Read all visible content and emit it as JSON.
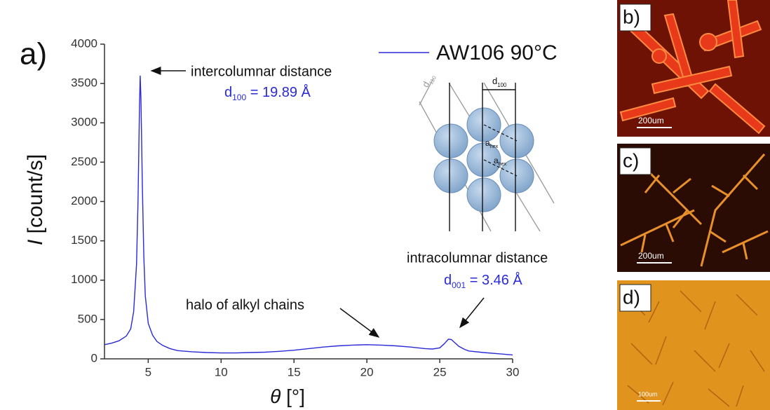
{
  "chart_data": {
    "type": "line",
    "panel_label": "a)",
    "x_label": {
      "symbol": "θ",
      "unit": "[°]"
    },
    "y_label": {
      "symbol": "I",
      "unit": "[count/s]"
    },
    "x": [
      2,
      2.5,
      3,
      3.5,
      3.8,
      4.0,
      4.2,
      4.3,
      4.4,
      4.45,
      4.5,
      4.6,
      4.7,
      4.8,
      5.0,
      5.3,
      5.6,
      6,
      6.5,
      7,
      8,
      9,
      10,
      11,
      12,
      13,
      14,
      15,
      16,
      17,
      18,
      19,
      20,
      21,
      22,
      23,
      24,
      24.5,
      25,
      25.3,
      25.6,
      25.8,
      26,
      26.3,
      26.7,
      27,
      28,
      29,
      30
    ],
    "series": [
      {
        "name": "AW106 90°C",
        "color": "#2a2ad8",
        "values": [
          180,
          200,
          230,
          290,
          380,
          600,
          1200,
          2000,
          3200,
          3600,
          3300,
          2200,
          1300,
          800,
          450,
          300,
          220,
          170,
          130,
          105,
          90,
          80,
          75,
          75,
          80,
          85,
          95,
          110,
          130,
          150,
          165,
          175,
          180,
          175,
          165,
          150,
          130,
          125,
          140,
          190,
          250,
          245,
          210,
          160,
          120,
          100,
          80,
          65,
          50
        ]
      }
    ],
    "xlim": [
      2,
      30
    ],
    "xticks": [
      5,
      10,
      15,
      20,
      25,
      30
    ],
    "ylim": [
      0,
      4000
    ],
    "yticks": [
      0,
      500,
      1000,
      1500,
      2000,
      2500,
      3000,
      3500,
      4000
    ],
    "annotations": {
      "peak1_label": "intercolumnar distance",
      "peak1_d": {
        "symbol": "d",
        "sub": "100",
        "value": " = 19.89 Å"
      },
      "halo": "halo of alkyl chains",
      "peak2_label": "intracolumnar distance",
      "peak2_d": {
        "symbol": "d",
        "sub": "001",
        "value": " = 3.46 Å"
      }
    },
    "inset": {
      "d110": {
        "symbol": "d",
        "sub": "110"
      },
      "d100": {
        "symbol": "d",
        "sub": "100"
      },
      "a1": {
        "symbol": "a",
        "sub": "hex"
      },
      "a2": {
        "symbol": "a",
        "sub": "hex"
      }
    }
  },
  "micrographs": [
    {
      "label": "b)",
      "scale": "200um"
    },
    {
      "label": "c)",
      "scale": "200um"
    },
    {
      "label": "d)",
      "scale": "100um"
    }
  ]
}
